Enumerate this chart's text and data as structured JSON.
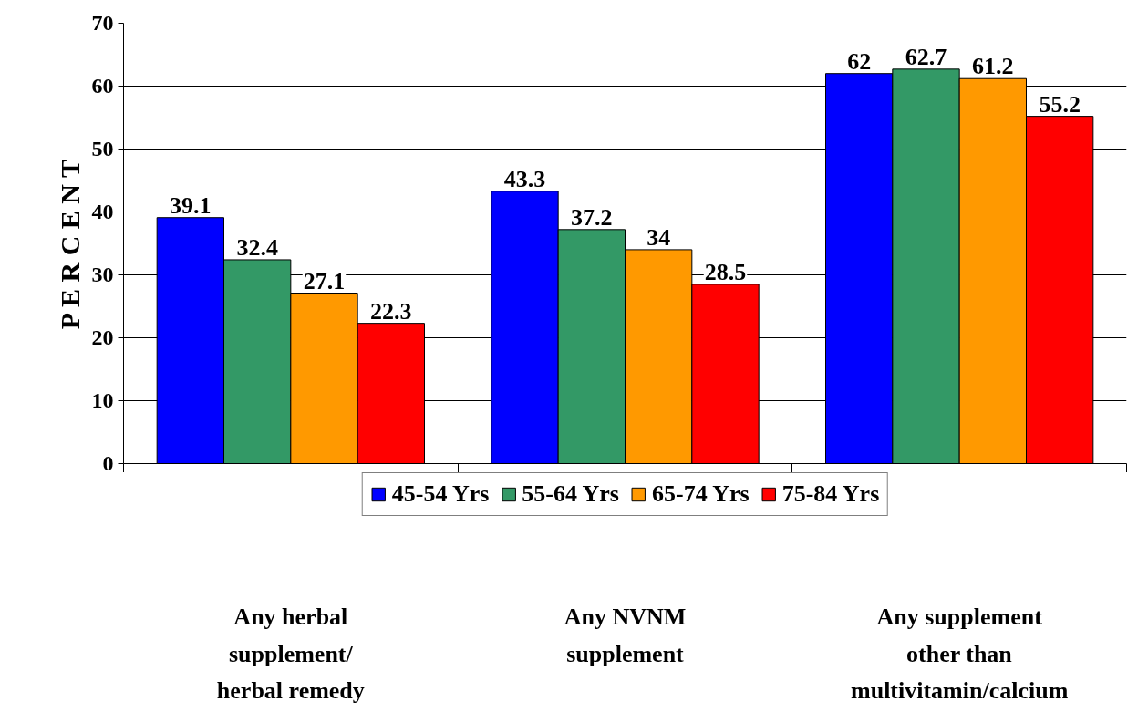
{
  "chart_data": {
    "type": "bar",
    "categories": [
      "Any herbal\nsupplement/\nherbal remedy",
      "Any NVNM\nsupplement",
      "Any supplement\nother than\nmultivitamin/calcium"
    ],
    "ylabel": "P E R C E N T",
    "series": [
      {
        "name": "45-54 Yrs",
        "color": "#0000ff",
        "values": [
          39.1,
          43.3,
          62
        ]
      },
      {
        "name": "55-64 Yrs",
        "color": "#339966",
        "values": [
          32.4,
          37.2,
          62.7
        ]
      },
      {
        "name": "65-74 Yrs",
        "color": "#ff9900",
        "values": [
          27.1,
          34,
          61.2
        ]
      },
      {
        "name": "75-84 Yrs",
        "color": "#ff0000",
        "values": [
          22.3,
          28.5,
          55.2
        ]
      }
    ],
    "ylim": [
      0,
      70
    ],
    "yticks": [
      0,
      10,
      20,
      30,
      40,
      50,
      60,
      70
    ],
    "grid": "y",
    "legend": "bottom",
    "data_labels": true
  }
}
